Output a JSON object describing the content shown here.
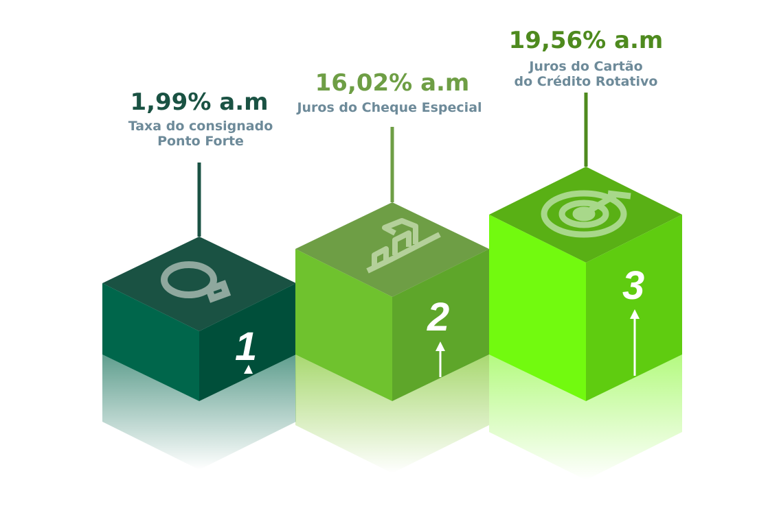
{
  "steps": [
    {
      "number": "1",
      "value": "1,99% a.m",
      "label_lines": [
        "Taxa do consignado",
        "Ponto Forte"
      ],
      "icon": "lightbulb-icon",
      "colors": {
        "top": "#1a5243",
        "left": "#00664b",
        "right": "#004f3a",
        "value": "#1a5243"
      }
    },
    {
      "number": "2",
      "value": "16,02% a.m",
      "label_lines": [
        "Juros do Cheque Especial"
      ],
      "icon": "growth-chart-icon",
      "colors": {
        "top": "#6e9e45",
        "left": "#6fc22e",
        "right": "#5ea62a",
        "value": "#6e9e45"
      }
    },
    {
      "number": "3",
      "value": "19,56% a.m",
      "label_lines": [
        "Juros do Cartão",
        "do Crédito Rotativo"
      ],
      "icon": "target-icon",
      "colors": {
        "top": "#59b015",
        "left": "#72fa0f",
        "right": "#5fcc10",
        "value": "#4e8a1e"
      }
    }
  ],
  "label_color": "#6d8a99"
}
